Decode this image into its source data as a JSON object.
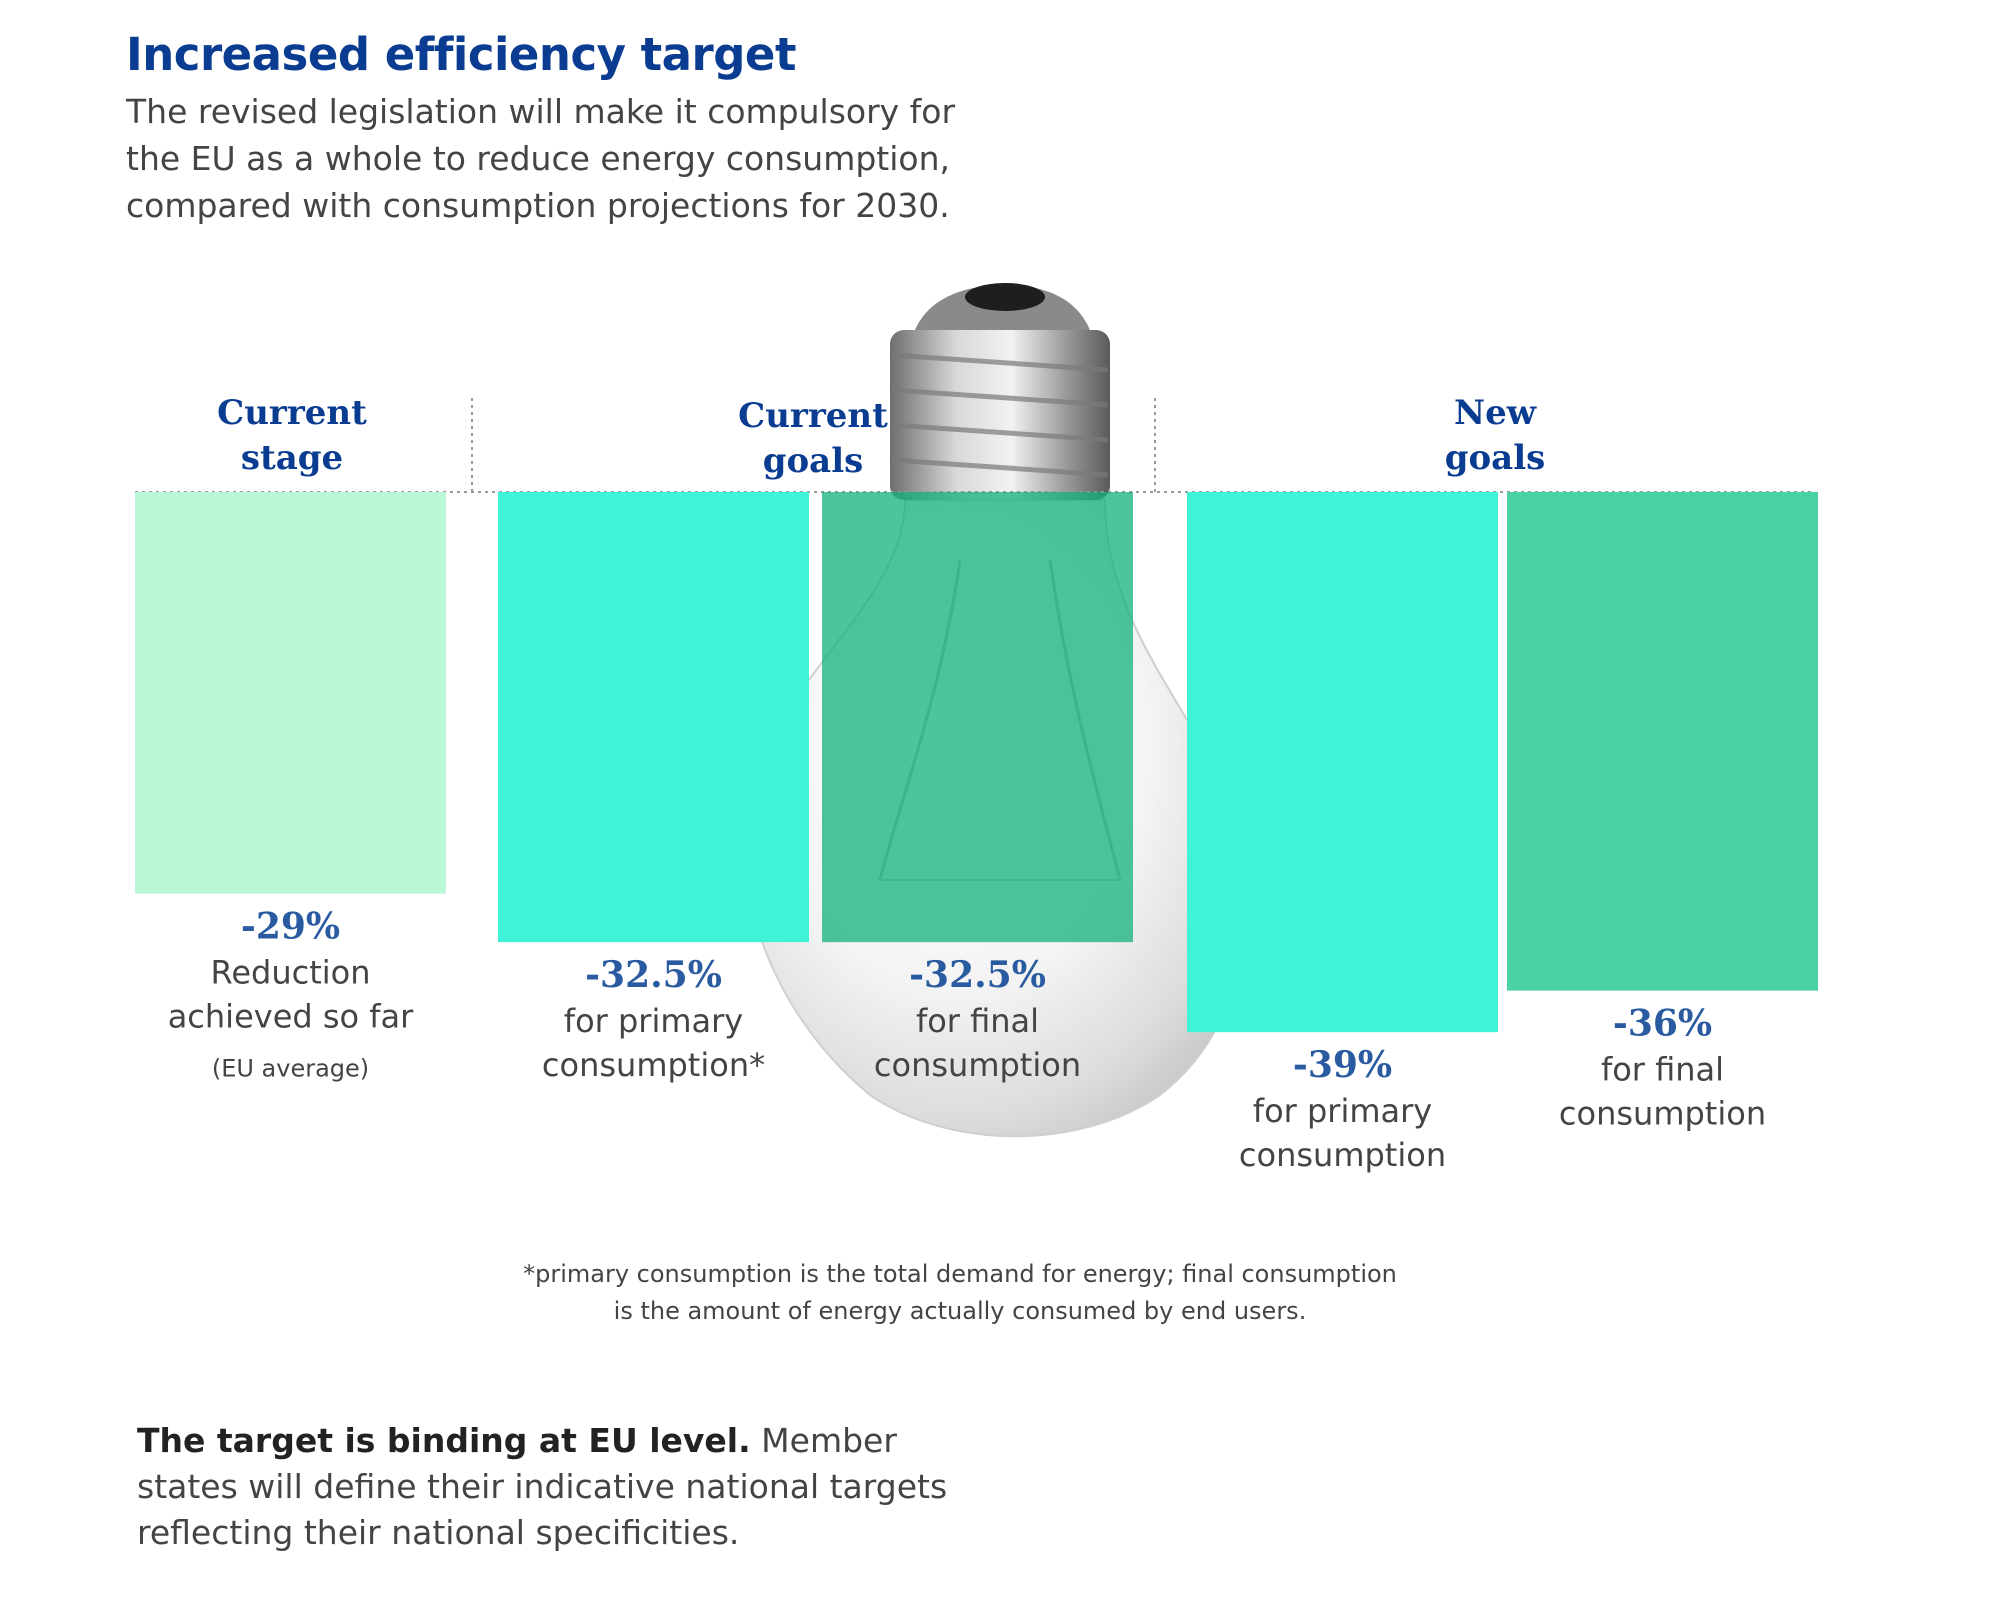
{
  "header": {
    "title": "Increased efficiency target",
    "subtitle_lines": [
      "The revised legislation will make it compulsory for",
      "the EU as a whole to reduce energy consumption,",
      "compared with consumption projections for 2030."
    ]
  },
  "chart_data": {
    "type": "bar",
    "orientation": "downward",
    "ylim": [
      0,
      40
    ],
    "groups": [
      {
        "label_lines": [
          "Current",
          "stage"
        ]
      },
      {
        "label_lines": [
          "Current",
          "goals"
        ]
      },
      {
        "label_lines": [
          "New",
          "goals"
        ]
      }
    ],
    "bars": [
      {
        "group": 0,
        "value": 29,
        "value_label": "-29%",
        "desc_lines": [
          "Reduction",
          "achieved so far"
        ],
        "note": "(EU average)",
        "color": "#b9f7d6"
      },
      {
        "group": 1,
        "value": 32.5,
        "value_label": "-32.5%",
        "desc_lines": [
          "for primary",
          "consumption*"
        ],
        "color": "#3ff3d8"
      },
      {
        "group": 1,
        "value": 32.5,
        "value_label": "-32.5%",
        "desc_lines": [
          "for final",
          "consumption"
        ],
        "color": "#12b07e"
      },
      {
        "group": 2,
        "value": 39,
        "value_label": "-39%",
        "desc_lines": [
          "for primary",
          "consumption"
        ],
        "color": "#3ff3d8"
      },
      {
        "group": 2,
        "value": 36,
        "value_label": "-36%",
        "desc_lines": [
          "for final",
          "consumption"
        ],
        "color": "#4bd1a6"
      }
    ]
  },
  "footnote_lines": [
    "*primary consumption is the total demand for energy; final consumption",
    "is the amount of energy actually consumed by end users."
  ],
  "bottom_note": {
    "bold": "The target is binding at EU level.",
    "rest_first": "Member",
    "lines": [
      "states will define their indicative national targets",
      "reflecting their national specificities."
    ]
  },
  "colors": {
    "title": "#0a3d91",
    "value_label": "#2a5aa0",
    "group_label": "#0a3d91",
    "body_text": "#444444"
  }
}
